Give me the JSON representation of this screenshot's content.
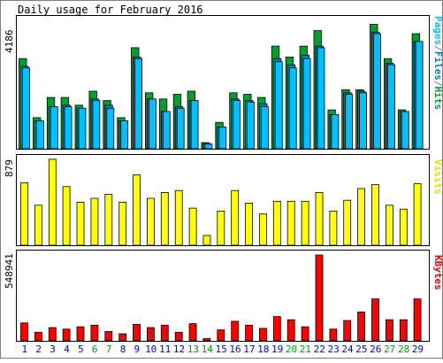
{
  "chart_data": {
    "type": "bar",
    "title": "Daily usage for February 2016",
    "days": [
      "1",
      "2",
      "3",
      "4",
      "5",
      "6",
      "7",
      "8",
      "9",
      "10",
      "11",
      "12",
      "13",
      "14",
      "15",
      "16",
      "17",
      "18",
      "19",
      "20",
      "21",
      "22",
      "23",
      "24",
      "25",
      "26",
      "27",
      "28",
      "29"
    ],
    "weekend_days": [
      "6",
      "7",
      "13",
      "14",
      "20",
      "21",
      "27",
      "28"
    ],
    "panels": [
      {
        "name": "hits",
        "max_label": "4186",
        "ymax": 4186,
        "side_label": "Pages/Files/Hits",
        "series": [
          {
            "name": "Hits",
            "color": "#00a030",
            "values": [
              2900,
              1000,
              1650,
              1650,
              1400,
              1850,
              1550,
              1000,
              3250,
              1800,
              1600,
              1750,
              1850,
              200,
              850,
              1800,
              1750,
              1650,
              3300,
              2950,
              3300,
              3800,
              1250,
              1900,
              1900,
              4000,
              2900,
              1250,
              3700
            ]
          },
          {
            "name": "Files",
            "color": "#0080c0",
            "values": [
              2650,
              900,
              1350,
              1400,
              1300,
              1600,
              1400,
              900,
              2950,
              1600,
              1200,
              1350,
              1550,
              160,
              700,
              1600,
              1550,
              1450,
              2900,
              2700,
              3000,
              3300,
              1100,
              1800,
              1850,
              3750,
              2750,
              1200,
              3450
            ]
          },
          {
            "name": "Pages",
            "color": "#00c0ff",
            "values": [
              2600,
              900,
              1350,
              1350,
              1300,
              1550,
              1300,
              900,
              2900,
              1600,
              1200,
              1300,
              1550,
              150,
              700,
              1550,
              1500,
              1350,
              2800,
              2600,
              2900,
              3250,
              1100,
              1750,
              1800,
              3700,
              2700,
              1200,
              3450
            ]
          }
        ]
      },
      {
        "name": "visits",
        "max_label": "879",
        "ymax": 879,
        "side_label": "Visits",
        "series": [
          {
            "name": "Visits",
            "color": "#ffff00",
            "values": [
              640,
              410,
              880,
              600,
              440,
              480,
              520,
              440,
              720,
              480,
              540,
              560,
              380,
              100,
              350,
              560,
              430,
              320,
              450,
              450,
              450,
              540,
              350,
              460,
              580,
              620,
              410,
              370,
              630
            ]
          }
        ]
      },
      {
        "name": "kbytes",
        "max_label": "548941",
        "ymax": 548941,
        "side_label": "KBytes",
        "series": [
          {
            "name": "KBytes",
            "color": "#ff0000",
            "values": [
              115000,
              55000,
              85000,
              75000,
              90000,
              100000,
              60000,
              45000,
              105000,
              85000,
              100000,
              55000,
              110000,
              15000,
              70000,
              125000,
              100000,
              80000,
              155000,
              135000,
              90000,
              548941,
              75000,
              130000,
              185000,
              268000,
              135000,
              135000,
              268000
            ]
          }
        ]
      }
    ]
  },
  "colors": {
    "weekday_label": "#0000ff",
    "weekend_label": "#00a000",
    "frame": "#808080",
    "panel_border": "#000000"
  }
}
